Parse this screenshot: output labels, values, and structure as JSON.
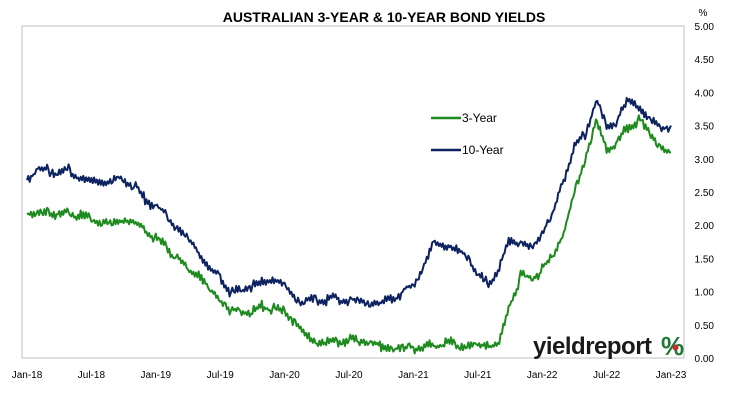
{
  "chart_data": {
    "type": "line",
    "title": "AUSTRALIAN 3-YEAR & 10-YEAR BOND YIELDS",
    "ylabel": "%",
    "ylim": [
      0,
      5
    ],
    "yticks": [
      "0.00",
      "0.50",
      "1.00",
      "1.50",
      "2.00",
      "2.50",
      "3.00",
      "3.50",
      "4.00",
      "4.50",
      "5.00"
    ],
    "xlim": [
      "2018-01",
      "2023-01"
    ],
    "xticks": [
      "Jan-18",
      "Jul-18",
      "Jan-19",
      "Jul-19",
      "Jan-20",
      "Jul-20",
      "Jan-21",
      "Jul-21",
      "Jan-22",
      "Jul-22",
      "Jan-23"
    ],
    "grid": false,
    "legend_position": "center-right",
    "x": [
      "2018-01",
      "2018-02",
      "2018-03",
      "2018-04",
      "2018-05",
      "2018-06",
      "2018-07",
      "2018-08",
      "2018-09",
      "2018-10",
      "2018-11",
      "2018-12",
      "2019-01",
      "2019-02",
      "2019-03",
      "2019-04",
      "2019-05",
      "2019-06",
      "2019-07",
      "2019-08",
      "2019-09",
      "2019-10",
      "2019-11",
      "2019-12",
      "2020-01",
      "2020-02",
      "2020-03",
      "2020-04",
      "2020-05",
      "2020-06",
      "2020-07",
      "2020-08",
      "2020-09",
      "2020-10",
      "2020-11",
      "2020-12",
      "2021-01",
      "2021-02",
      "2021-03",
      "2021-04",
      "2021-05",
      "2021-06",
      "2021-07",
      "2021-08",
      "2021-09",
      "2021-10",
      "2021-11",
      "2021-12",
      "2022-01",
      "2022-02",
      "2022-03",
      "2022-04",
      "2022-05",
      "2022-06",
      "2022-07",
      "2022-08",
      "2022-09",
      "2022-10",
      "2022-11",
      "2022-12",
      "2023-01"
    ],
    "series": [
      {
        "name": "3-Year",
        "color": "#1e8b1e",
        "values": [
          2.18,
          2.18,
          2.23,
          2.15,
          2.2,
          2.15,
          2.1,
          2.05,
          2.05,
          2.1,
          2.05,
          1.95,
          1.8,
          1.7,
          1.5,
          1.35,
          1.25,
          1.05,
          0.9,
          0.7,
          0.75,
          0.7,
          0.8,
          0.75,
          0.7,
          0.55,
          0.35,
          0.25,
          0.26,
          0.28,
          0.28,
          0.28,
          0.25,
          0.18,
          0.17,
          0.15,
          0.17,
          0.18,
          0.2,
          0.25,
          0.22,
          0.2,
          0.22,
          0.2,
          0.25,
          0.8,
          1.25,
          1.2,
          1.35,
          1.55,
          1.9,
          2.5,
          3.0,
          3.6,
          3.15,
          3.25,
          3.5,
          3.6,
          3.4,
          3.2,
          3.1
        ]
      },
      {
        "name": "10-Year",
        "color": "#0d2260",
        "values": [
          2.72,
          2.85,
          2.85,
          2.8,
          2.85,
          2.7,
          2.7,
          2.65,
          2.7,
          2.7,
          2.6,
          2.4,
          2.3,
          2.15,
          1.95,
          1.8,
          1.6,
          1.35,
          1.25,
          1.0,
          1.05,
          1.1,
          1.15,
          1.2,
          1.1,
          0.9,
          0.85,
          0.9,
          0.9,
          0.9,
          0.88,
          0.88,
          0.85,
          0.85,
          0.9,
          1.0,
          1.1,
          1.4,
          1.75,
          1.7,
          1.65,
          1.55,
          1.25,
          1.15,
          1.35,
          1.8,
          1.75,
          1.65,
          1.9,
          2.2,
          2.7,
          3.2,
          3.4,
          3.9,
          3.5,
          3.6,
          3.9,
          3.8,
          3.6,
          3.5,
          3.5
        ]
      }
    ]
  },
  "logo": {
    "text": "yieldreport",
    "symbol": "%"
  }
}
